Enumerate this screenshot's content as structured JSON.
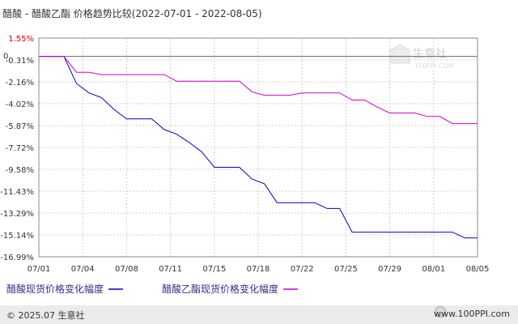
{
  "chart_data": {
    "type": "line",
    "title": "醋酸 - 醋酸乙酯 价格趋势比较(2022-07-01 - 2022-08-05)",
    "zero_label": "0",
    "y_ticks": [
      "1.55%",
      "-0.31%",
      "-2.16%",
      "-4.02%",
      "-5.87%",
      "-7.72%",
      "-9.58%",
      "-11.43%",
      "-13.29%",
      "-15.14%",
      "-16.99%"
    ],
    "x_ticks": [
      "07/01",
      "07/04",
      "07/08",
      "07/11",
      "07/15",
      "07/18",
      "07/22",
      "07/25",
      "07/29",
      "08/01",
      "08/05"
    ],
    "ylim": [
      -16.99,
      1.55
    ],
    "series": [
      {
        "name": "醋酸现货价格变化幅度",
        "color": "#0000cc",
        "x": [
          "2022-07-01",
          "2022-07-02",
          "2022-07-03",
          "2022-07-04",
          "2022-07-05",
          "2022-07-06",
          "2022-07-07",
          "2022-07-08",
          "2022-07-09",
          "2022-07-10",
          "2022-07-11",
          "2022-07-12",
          "2022-07-13",
          "2022-07-14",
          "2022-07-15",
          "2022-07-16",
          "2022-07-17",
          "2022-07-18",
          "2022-07-19",
          "2022-07-20",
          "2022-07-21",
          "2022-07-22",
          "2022-07-23",
          "2022-07-24",
          "2022-07-25",
          "2022-07-26",
          "2022-07-27",
          "2022-07-28",
          "2022-07-29",
          "2022-07-30",
          "2022-07-31",
          "2022-08-01",
          "2022-08-02",
          "2022-08-03",
          "2022-08-04",
          "2022-08-05"
        ],
        "values": [
          0,
          0,
          0,
          -2.3,
          -3.1,
          -3.5,
          -4.5,
          -5.3,
          -5.3,
          -5.3,
          -6.2,
          -6.6,
          -7.3,
          -8.1,
          -9.4,
          -9.4,
          -9.4,
          -10.4,
          -10.8,
          -12.4,
          -12.4,
          -12.4,
          -12.4,
          -12.9,
          -12.9,
          -14.9,
          -14.9,
          -14.9,
          -14.9,
          -14.9,
          -14.9,
          -14.9,
          -14.9,
          -14.9,
          -15.4,
          -15.4
        ]
      },
      {
        "name": "醋酸乙酯现货价格变化幅度",
        "color": "#cc00cc",
        "x": [
          "2022-07-01",
          "2022-07-02",
          "2022-07-03",
          "2022-07-04",
          "2022-07-05",
          "2022-07-06",
          "2022-07-07",
          "2022-07-08",
          "2022-07-09",
          "2022-07-10",
          "2022-07-11",
          "2022-07-12",
          "2022-07-13",
          "2022-07-14",
          "2022-07-15",
          "2022-07-16",
          "2022-07-17",
          "2022-07-18",
          "2022-07-19",
          "2022-07-20",
          "2022-07-21",
          "2022-07-22",
          "2022-07-23",
          "2022-07-24",
          "2022-07-25",
          "2022-07-26",
          "2022-07-27",
          "2022-07-28",
          "2022-07-29",
          "2022-07-30",
          "2022-07-31",
          "2022-08-01",
          "2022-08-02",
          "2022-08-03",
          "2022-08-04",
          "2022-08-05"
        ],
        "values": [
          0,
          0,
          0,
          -1.35,
          -1.35,
          -1.55,
          -1.55,
          -1.55,
          -1.55,
          -1.55,
          -1.55,
          -2.1,
          -2.1,
          -2.1,
          -2.1,
          -2.1,
          -2.1,
          -3.0,
          -3.3,
          -3.3,
          -3.3,
          -3.1,
          -3.1,
          -3.1,
          -3.1,
          -3.7,
          -3.7,
          -4.3,
          -4.8,
          -4.8,
          -4.8,
          -5.1,
          -5.1,
          -5.7,
          -5.7,
          -5.7
        ]
      }
    ],
    "grid": true,
    "legend": "bottom"
  },
  "watermark": {
    "name": "生意社",
    "url": "100PPI.COM"
  },
  "footer": {
    "left": "© 2025.07 生意社",
    "right": "www.100PPI.com"
  }
}
